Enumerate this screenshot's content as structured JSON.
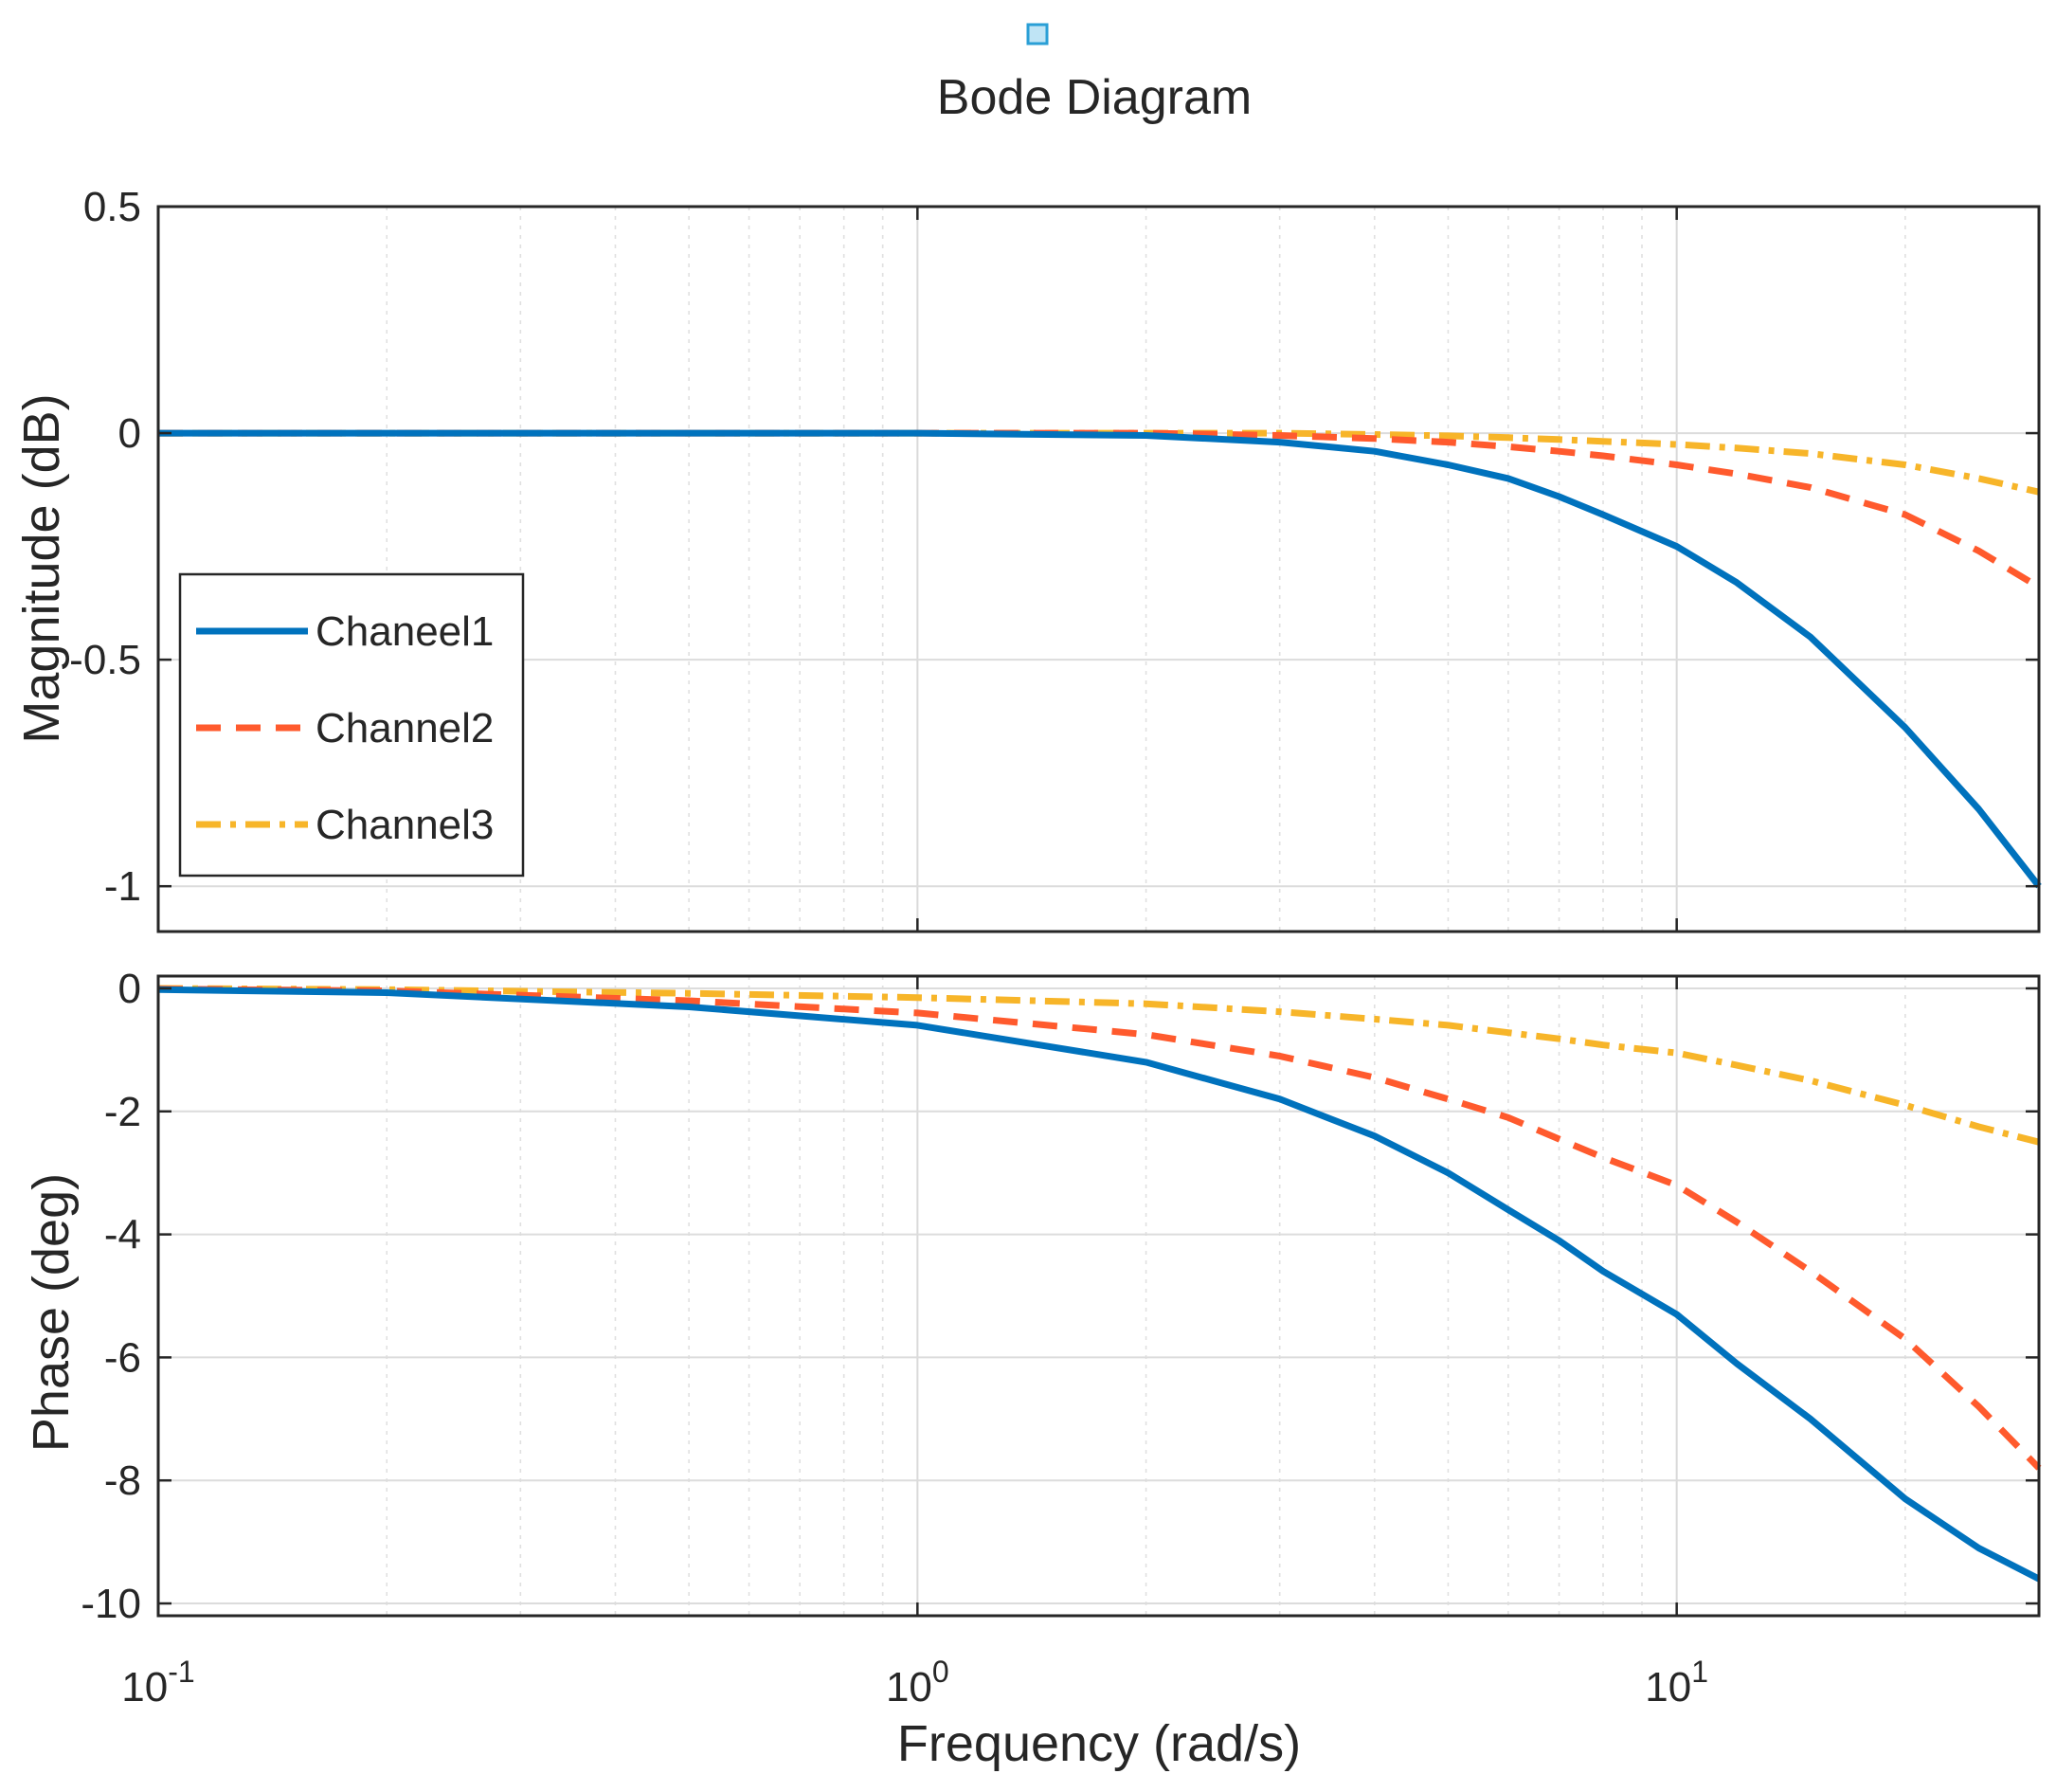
{
  "chart_data": {
    "type": "line",
    "title": "Bode Diagram",
    "xlabel": "Frequency  (rad/s)",
    "xscale": "log",
    "xlim": [
      0.1,
      30
    ],
    "x_ticks": [
      {
        "base": "10",
        "exp": "-1",
        "value": 0.1
      },
      {
        "base": "10",
        "exp": "0",
        "value": 1
      },
      {
        "base": "10",
        "exp": "1",
        "value": 10
      }
    ],
    "legend": {
      "location": "lower-left of magnitude axes",
      "entries": [
        {
          "name": "Chaneel1",
          "color": "#0072BD",
          "style": "solid"
        },
        {
          "name": "Channel2",
          "color": "#FF5A2D",
          "style": "dashed"
        },
        {
          "name": "Channel3",
          "color": "#F7B529",
          "style": "dashdot"
        }
      ]
    },
    "magnitude": {
      "ylabel": "Magnitude (dB)",
      "ylim": [
        -1.1,
        0.5
      ],
      "y_ticks": [
        "0.5",
        "0",
        "-0.5",
        "-1"
      ],
      "y_tick_values": [
        0.5,
        0,
        -0.5,
        -1
      ],
      "x": [
        0.1,
        0.2,
        0.5,
        1,
        2,
        3,
        4,
        5,
        6,
        7,
        8,
        10,
        12,
        15,
        20,
        25,
        30
      ],
      "series": [
        {
          "name": "Chaneel1",
          "values": [
            0,
            0,
            0,
            0,
            -0.005,
            -0.02,
            -0.04,
            -0.07,
            -0.1,
            -0.14,
            -0.18,
            -0.25,
            -0.33,
            -0.45,
            -0.65,
            -0.83,
            -1.0
          ]
        },
        {
          "name": "Channel2",
          "values": [
            0,
            0,
            0,
            0,
            0,
            -0.005,
            -0.012,
            -0.02,
            -0.03,
            -0.04,
            -0.05,
            -0.07,
            -0.09,
            -0.12,
            -0.18,
            -0.26,
            -0.34
          ]
        },
        {
          "name": "Channel3",
          "values": [
            0,
            0,
            0,
            0,
            0,
            0,
            -0.003,
            -0.006,
            -0.01,
            -0.014,
            -0.018,
            -0.025,
            -0.033,
            -0.045,
            -0.07,
            -0.1,
            -0.13
          ]
        }
      ]
    },
    "phase": {
      "ylabel": "Phase (deg)",
      "ylim": [
        -10.2,
        0.2
      ],
      "y_ticks": [
        "0",
        "-2",
        "-4",
        "-6",
        "-8",
        "-10"
      ],
      "y_tick_values": [
        0,
        -2,
        -4,
        -6,
        -8,
        -10
      ],
      "x": [
        0.1,
        0.2,
        0.5,
        1,
        2,
        3,
        4,
        5,
        6,
        7,
        8,
        10,
        12,
        15,
        20,
        25,
        30
      ],
      "series": [
        {
          "name": "Chaneel1",
          "values": [
            -0.02,
            -0.07,
            -0.3,
            -0.6,
            -1.2,
            -1.8,
            -2.4,
            -3.0,
            -3.6,
            -4.1,
            -4.6,
            -5.3,
            -6.1,
            -7.0,
            -8.3,
            -9.1,
            -9.6
          ]
        },
        {
          "name": "Channel2",
          "values": [
            -0.01,
            -0.04,
            -0.2,
            -0.4,
            -0.75,
            -1.1,
            -1.45,
            -1.8,
            -2.1,
            -2.45,
            -2.75,
            -3.2,
            -3.8,
            -4.6,
            -5.7,
            -6.8,
            -7.8
          ]
        },
        {
          "name": "Channel3",
          "values": [
            0,
            -0.02,
            -0.08,
            -0.15,
            -0.25,
            -0.38,
            -0.5,
            -0.6,
            -0.72,
            -0.82,
            -0.92,
            -1.05,
            -1.25,
            -1.5,
            -1.9,
            -2.25,
            -2.5
          ]
        }
      ]
    }
  }
}
